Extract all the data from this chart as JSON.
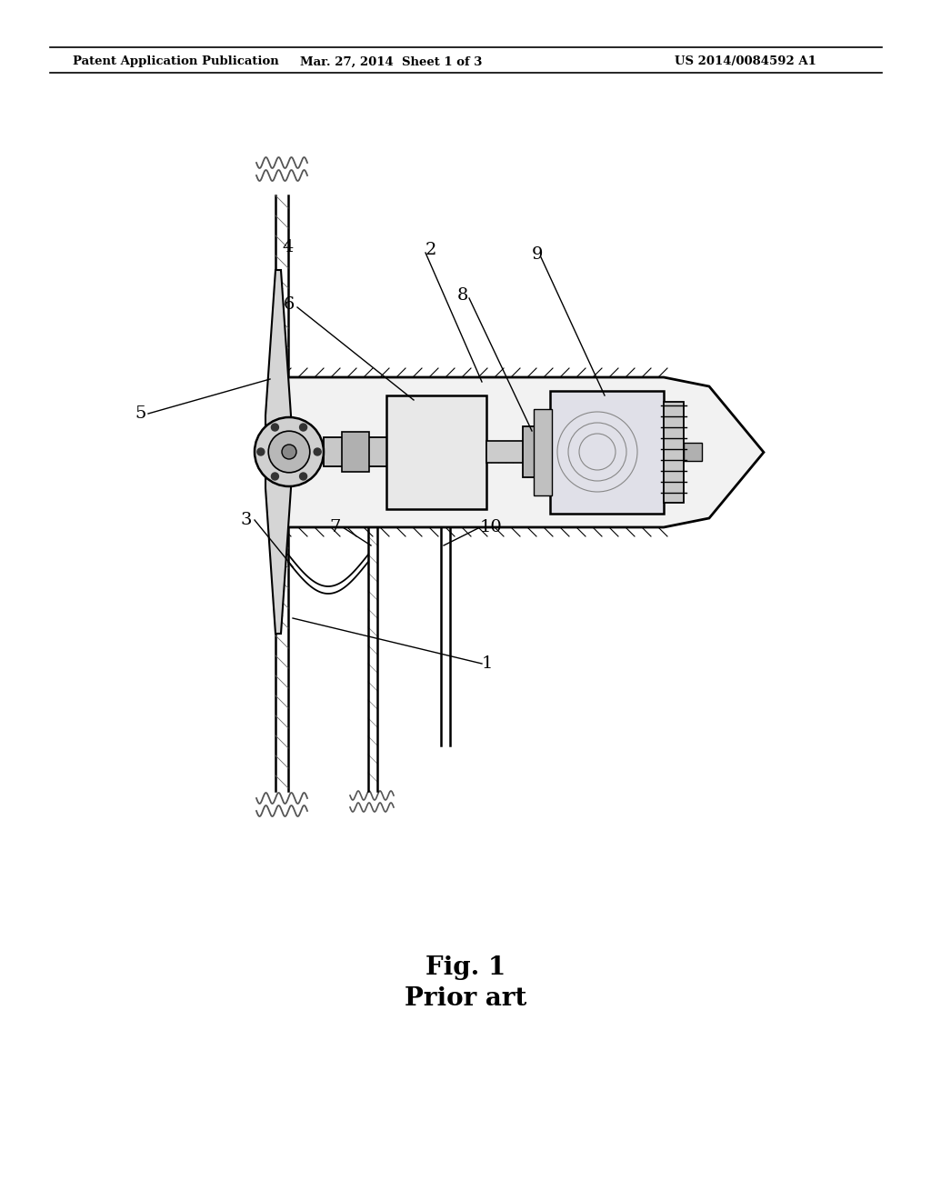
{
  "title_line1": "Fig. 1",
  "title_line2": "Prior art",
  "header_left": "Patent Application Publication",
  "header_mid": "Mar. 27, 2014  Sheet 1 of 3",
  "header_right": "US 2014/0084592 A1",
  "bg_color": "#ffffff",
  "line_color": "#000000",
  "gray_color": "#888888",
  "label_color": "#222222"
}
